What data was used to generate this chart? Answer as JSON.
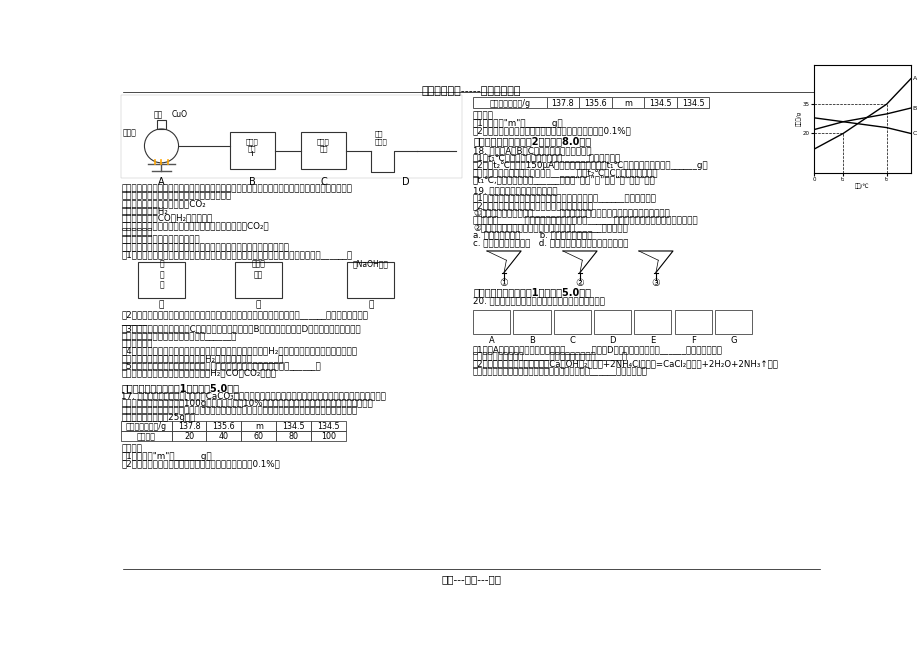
{
  "title": "精选优质文档-----倾情为你奉上",
  "footer": "专心---专注---专业",
  "bg_color": "#ffffff",
  "text_color": "#000000",
  "page_width": 9.2,
  "page_height": 6.51,
  "dpi": 100,
  "table_row1": [
    "烧杯和药品质量/g",
    "137.8",
    "135.6",
    "m",
    "134.5",
    "134.5"
  ],
  "table_row2": [
    "反应时间",
    "20",
    "40",
    "60",
    "80",
    "100"
  ],
  "col_widths_left": [
    65,
    45,
    45,
    45,
    45,
    45
  ],
  "col_widths_right": [
    95,
    42,
    42,
    42,
    42,
    42
  ],
  "section3_title": "三、计算题（本大题共1小题，共5.0分）",
  "section4_title": "四、简答题（本大题共2小题，共8.0分）",
  "section5_title": "五、探究题（本大题共1小题，共5.0分）"
}
